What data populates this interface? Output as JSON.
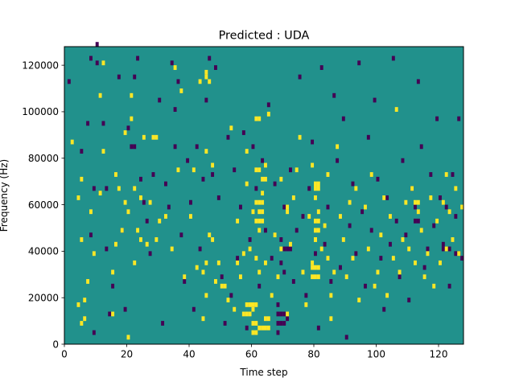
{
  "chart_data": {
    "type": "heatmap",
    "title": "Predicted : UDA",
    "xlabel": "Time step",
    "ylabel": "Frequency (Hz)",
    "xlim": [
      0,
      128
    ],
    "ylim": [
      0,
      128000
    ],
    "xticks": [
      0,
      20,
      40,
      60,
      80,
      100,
      120
    ],
    "xtick_labels": [
      "0",
      "20",
      "40",
      "60",
      "80",
      "100",
      "120"
    ],
    "yticks": [
      0,
      20000,
      40000,
      60000,
      80000,
      100000,
      120000
    ],
    "ytick_labels": [
      "0",
      "20000",
      "40000",
      "60000",
      "80000",
      "100000",
      "120000"
    ],
    "cell_width": 1,
    "cell_height": 2000,
    "grid": false,
    "colors": {
      "background": "#21918c",
      "high": "#fde725",
      "low": "#440154"
    },
    "high_cells": [
      [
        2,
        86000
      ],
      [
        4,
        16000
      ],
      [
        4,
        62000
      ],
      [
        5,
        8000
      ],
      [
        5,
        44000
      ],
      [
        5,
        70000
      ],
      [
        6,
        10000
      ],
      [
        6,
        18000
      ],
      [
        7,
        26000
      ],
      [
        8,
        56000
      ],
      [
        9,
        38000
      ],
      [
        11,
        64000
      ],
      [
        11,
        106000
      ],
      [
        12,
        82000
      ],
      [
        12,
        120000
      ],
      [
        15,
        12000
      ],
      [
        15,
        30000
      ],
      [
        16,
        42000
      ],
      [
        16,
        72000
      ],
      [
        17,
        66000
      ],
      [
        18,
        48000
      ],
      [
        19,
        60000
      ],
      [
        19,
        90000
      ],
      [
        20,
        2000
      ],
      [
        20,
        56000
      ],
      [
        21,
        96000
      ],
      [
        21,
        106000
      ],
      [
        22,
        34000
      ],
      [
        22,
        66000
      ],
      [
        23,
        48000
      ],
      [
        24,
        44000
      ],
      [
        24,
        62000
      ],
      [
        25,
        88000
      ],
      [
        26,
        42000
      ],
      [
        27,
        60000
      ],
      [
        29,
        44000
      ],
      [
        30,
        52000
      ],
      [
        32,
        54000
      ],
      [
        34,
        40000
      ],
      [
        35,
        118000
      ],
      [
        36,
        74000
      ],
      [
        37,
        108000
      ],
      [
        38,
        28000
      ],
      [
        40,
        54000
      ],
      [
        41,
        74000
      ],
      [
        42,
        32000
      ],
      [
        43,
        112000
      ],
      [
        44,
        10000
      ],
      [
        44,
        30000
      ],
      [
        45,
        20000
      ],
      [
        45,
        34000
      ],
      [
        45,
        82000
      ],
      [
        46,
        46000
      ],
      [
        47,
        44000
      ],
      [
        47,
        76000
      ],
      [
        48,
        26000
      ],
      [
        49,
        34000
      ],
      [
        50,
        24000
      ],
      [
        51,
        24000
      ],
      [
        52,
        18000
      ],
      [
        53,
        92000
      ],
      [
        54,
        14000
      ],
      [
        55,
        34000
      ],
      [
        55,
        52000
      ],
      [
        56,
        28000
      ],
      [
        57,
        38000
      ],
      [
        58,
        68000
      ],
      [
        58,
        82000
      ],
      [
        59,
        40000
      ],
      [
        60,
        14000
      ],
      [
        60,
        56000
      ],
      [
        61,
        36000
      ],
      [
        61,
        60000
      ],
      [
        62,
        30000
      ],
      [
        62,
        48000
      ],
      [
        62,
        74000
      ],
      [
        63,
        64000
      ],
      [
        64,
        34000
      ],
      [
        64,
        76000
      ],
      [
        65,
        98000
      ],
      [
        66,
        20000
      ],
      [
        67,
        46000
      ],
      [
        68,
        28000
      ],
      [
        69,
        40000
      ],
      [
        69,
        70000
      ],
      [
        71,
        12000
      ],
      [
        72,
        42000
      ],
      [
        73,
        62000
      ],
      [
        74,
        74000
      ],
      [
        75,
        88000
      ],
      [
        76,
        30000
      ],
      [
        77,
        16000
      ],
      [
        78,
        54000
      ],
      [
        79,
        34000
      ],
      [
        79,
        76000
      ],
      [
        80,
        44000
      ],
      [
        80,
        62000
      ],
      [
        81,
        56000
      ],
      [
        82,
        40000
      ],
      [
        83,
        50000
      ],
      [
        84,
        36000
      ],
      [
        84,
        72000
      ],
      [
        85,
        10000
      ],
      [
        85,
        20000
      ],
      [
        86,
        30000
      ],
      [
        87,
        84000
      ],
      [
        88,
        54000
      ],
      [
        89,
        44000
      ],
      [
        90,
        28000
      ],
      [
        91,
        60000
      ],
      [
        92,
        36000
      ],
      [
        93,
        66000
      ],
      [
        94,
        18000
      ],
      [
        96,
        58000
      ],
      [
        97,
        40000
      ],
      [
        98,
        72000
      ],
      [
        99,
        24000
      ],
      [
        100,
        30000
      ],
      [
        101,
        46000
      ],
      [
        102,
        62000
      ],
      [
        103,
        20000
      ],
      [
        104,
        54000
      ],
      [
        105,
        36000
      ],
      [
        106,
        100000
      ],
      [
        107,
        30000
      ],
      [
        108,
        44000
      ],
      [
        109,
        60000
      ],
      [
        110,
        40000
      ],
      [
        111,
        66000
      ],
      [
        112,
        34000
      ],
      [
        113,
        56000
      ],
      [
        114,
        48000
      ],
      [
        115,
        28000
      ],
      [
        116,
        38000
      ],
      [
        117,
        62000
      ],
      [
        118,
        24000
      ],
      [
        119,
        52000
      ],
      [
        120,
        34000
      ],
      [
        121,
        60000
      ],
      [
        122,
        40000
      ],
      [
        123,
        56000
      ],
      [
        124,
        44000
      ],
      [
        125,
        66000
      ],
      [
        126,
        38000
      ],
      [
        127,
        58000
      ],
      [
        57,
        12000
      ],
      [
        58,
        12000
      ],
      [
        59,
        12000
      ],
      [
        58,
        16000
      ],
      [
        59,
        16000
      ],
      [
        60,
        16000
      ],
      [
        61,
        16000
      ],
      [
        60,
        8000
      ],
      [
        61,
        8000
      ],
      [
        60,
        4000
      ],
      [
        61,
        4000
      ],
      [
        62,
        56000
      ],
      [
        63,
        56000
      ],
      [
        62,
        52000
      ],
      [
        63,
        52000
      ],
      [
        61,
        52000
      ],
      [
        62,
        60000
      ],
      [
        63,
        60000
      ],
      [
        80,
        44000
      ],
      [
        80,
        48000
      ],
      [
        81,
        48000
      ],
      [
        80,
        52000
      ],
      [
        81,
        52000
      ],
      [
        80,
        68000
      ],
      [
        81,
        68000
      ],
      [
        80,
        66000
      ],
      [
        81,
        66000
      ],
      [
        61,
        96000
      ],
      [
        62,
        96000
      ],
      [
        61,
        74000
      ],
      [
        63,
        70000
      ],
      [
        64,
        70000
      ],
      [
        71,
        56000
      ],
      [
        71,
        58000
      ],
      [
        79,
        32000
      ],
      [
        80,
        32000
      ],
      [
        81,
        32000
      ],
      [
        79,
        28000
      ],
      [
        80,
        28000
      ],
      [
        81,
        28000
      ],
      [
        62,
        6000
      ],
      [
        63,
        6000
      ],
      [
        64,
        6000
      ],
      [
        65,
        6000
      ],
      [
        64,
        10000
      ],
      [
        65,
        10000
      ],
      [
        28,
        88000
      ],
      [
        29,
        88000
      ],
      [
        45,
        116000
      ],
      [
        45,
        114000
      ],
      [
        46,
        112000
      ],
      [
        112,
        60000
      ],
      [
        113,
        60000
      ],
      [
        122,
        72000
      ]
    ],
    "low_cells": [
      [
        1,
        112000
      ],
      [
        5,
        82000
      ],
      [
        7,
        94000
      ],
      [
        8,
        46000
      ],
      [
        8,
        122000
      ],
      [
        9,
        66000
      ],
      [
        9,
        4000
      ],
      [
        10,
        120000
      ],
      [
        10,
        128000
      ],
      [
        12,
        94000
      ],
      [
        13,
        66000
      ],
      [
        13,
        40000
      ],
      [
        14,
        12000
      ],
      [
        15,
        24000
      ],
      [
        17,
        114000
      ],
      [
        18,
        48000
      ],
      [
        19,
        14000
      ],
      [
        20,
        92000
      ],
      [
        21,
        84000
      ],
      [
        22,
        84000
      ],
      [
        22,
        114000
      ],
      [
        23,
        122000
      ],
      [
        24,
        70000
      ],
      [
        25,
        60000
      ],
      [
        26,
        52000
      ],
      [
        27,
        38000
      ],
      [
        28,
        72000
      ],
      [
        30,
        104000
      ],
      [
        31,
        8000
      ],
      [
        32,
        68000
      ],
      [
        33,
        58000
      ],
      [
        34,
        120000
      ],
      [
        35,
        84000
      ],
      [
        35,
        100000
      ],
      [
        36,
        112000
      ],
      [
        37,
        46000
      ],
      [
        38,
        26000
      ],
      [
        39,
        78000
      ],
      [
        40,
        60000
      ],
      [
        41,
        14000
      ],
      [
        42,
        84000
      ],
      [
        43,
        40000
      ],
      [
        44,
        70000
      ],
      [
        45,
        104000
      ],
      [
        46,
        122000
      ],
      [
        47,
        72000
      ],
      [
        48,
        118000
      ],
      [
        49,
        62000
      ],
      [
        50,
        28000
      ],
      [
        51,
        8000
      ],
      [
        52,
        88000
      ],
      [
        53,
        20000
      ],
      [
        54,
        74000
      ],
      [
        55,
        36000
      ],
      [
        56,
        58000
      ],
      [
        57,
        90000
      ],
      [
        58,
        6000
      ],
      [
        59,
        44000
      ],
      [
        60,
        84000
      ],
      [
        61,
        66000
      ],
      [
        62,
        24000
      ],
      [
        63,
        78000
      ],
      [
        64,
        48000
      ],
      [
        65,
        102000
      ],
      [
        66,
        36000
      ],
      [
        67,
        68000
      ],
      [
        68,
        16000
      ],
      [
        68,
        4000
      ],
      [
        69,
        44000
      ],
      [
        69,
        34000
      ],
      [
        70,
        58000
      ],
      [
        70,
        30000
      ],
      [
        71,
        10000
      ],
      [
        72,
        74000
      ],
      [
        73,
        26000
      ],
      [
        74,
        48000
      ],
      [
        75,
        114000
      ],
      [
        76,
        54000
      ],
      [
        77,
        20000
      ],
      [
        78,
        66000
      ],
      [
        79,
        86000
      ],
      [
        80,
        38000
      ],
      [
        81,
        6000
      ],
      [
        82,
        118000
      ],
      [
        83,
        42000
      ],
      [
        84,
        58000
      ],
      [
        85,
        26000
      ],
      [
        86,
        106000
      ],
      [
        87,
        78000
      ],
      [
        88,
        32000
      ],
      [
        89,
        96000
      ],
      [
        90,
        2000
      ],
      [
        91,
        50000
      ],
      [
        92,
        68000
      ],
      [
        93,
        38000
      ],
      [
        94,
        120000
      ],
      [
        95,
        56000
      ],
      [
        96,
        24000
      ],
      [
        97,
        88000
      ],
      [
        98,
        48000
      ],
      [
        99,
        104000
      ],
      [
        100,
        70000
      ],
      [
        101,
        36000
      ],
      [
        102,
        14000
      ],
      [
        103,
        62000
      ],
      [
        104,
        42000
      ],
      [
        105,
        122000
      ],
      [
        106,
        52000
      ],
      [
        107,
        28000
      ],
      [
        108,
        78000
      ],
      [
        109,
        46000
      ],
      [
        110,
        18000
      ],
      [
        111,
        66000
      ],
      [
        112,
        58000
      ],
      [
        113,
        112000
      ],
      [
        114,
        84000
      ],
      [
        115,
        32000
      ],
      [
        116,
        40000
      ],
      [
        117,
        72000
      ],
      [
        118,
        50000
      ],
      [
        119,
        96000
      ],
      [
        120,
        62000
      ],
      [
        121,
        42000
      ],
      [
        122,
        58000
      ],
      [
        123,
        24000
      ],
      [
        124,
        72000
      ],
      [
        125,
        54000
      ],
      [
        126,
        96000
      ],
      [
        127,
        36000
      ],
      [
        68,
        8000
      ],
      [
        69,
        8000
      ],
      [
        70,
        8000
      ],
      [
        68,
        12000
      ],
      [
        69,
        12000
      ],
      [
        70,
        12000
      ],
      [
        70,
        40000
      ],
      [
        71,
        40000
      ],
      [
        72,
        40000
      ],
      [
        112,
        52000
      ],
      [
        113,
        52000
      ],
      [
        121,
        40000
      ],
      [
        122,
        40000
      ],
      [
        123,
        40000
      ],
      [
        125,
        38000
      ],
      [
        126,
        38000
      ]
    ]
  }
}
